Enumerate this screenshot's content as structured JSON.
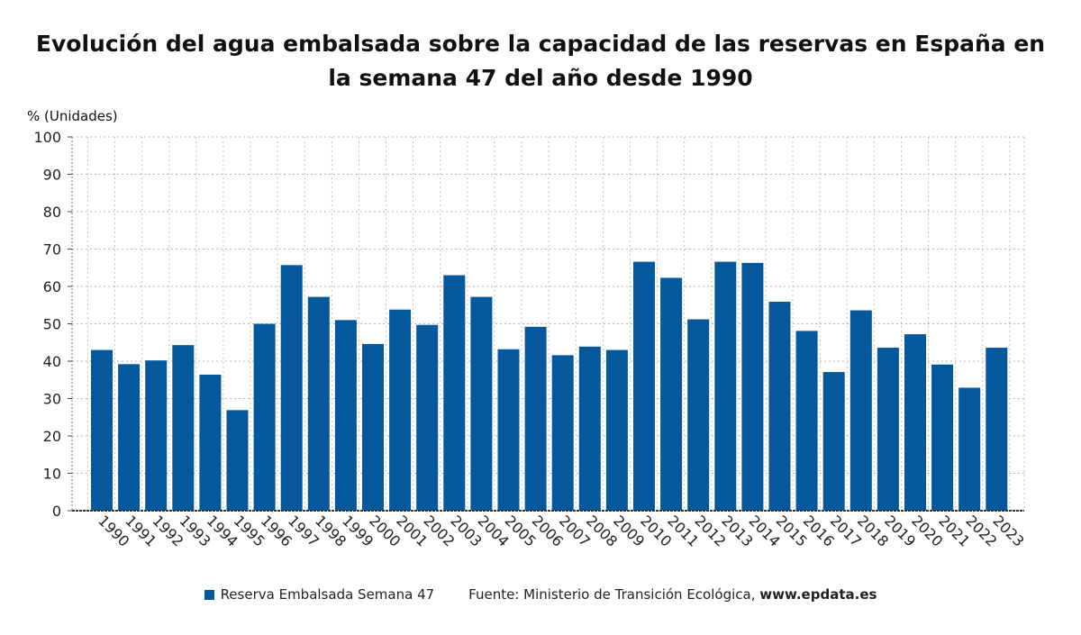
{
  "chart_data": {
    "type": "bar",
    "title": "Evolución del agua embalsada sobre la capacidad de las reservas en España en la semana 47 del año desde 1990",
    "ylabel": "% (Unidades)",
    "xlabel": "",
    "ylim": [
      0,
      100
    ],
    "yticks": [
      0,
      10,
      20,
      30,
      40,
      50,
      60,
      70,
      80,
      90,
      100
    ],
    "grid": true,
    "legend_position": "bottom",
    "categories": [
      "1990",
      "1991",
      "1992",
      "1993",
      "1994",
      "1995",
      "1996",
      "1997",
      "1998",
      "1999",
      "2000",
      "2001",
      "2002",
      "2003",
      "2004",
      "2005",
      "2006",
      "2007",
      "2008",
      "2009",
      "2010",
      "2011",
      "2012",
      "2013",
      "2014",
      "2015",
      "2016",
      "2017",
      "2018",
      "2019",
      "2020",
      "2021",
      "2022",
      "2023"
    ],
    "series": [
      {
        "name": "Reserva Embalsada Semana 47",
        "color": "#04589b",
        "values": [
          43.0,
          39.2,
          40.2,
          44.3,
          36.4,
          26.9,
          50.0,
          65.7,
          57.2,
          51.0,
          44.6,
          53.8,
          49.7,
          63.0,
          57.2,
          43.2,
          49.2,
          41.6,
          43.9,
          43.0,
          66.6,
          62.3,
          51.2,
          66.6,
          66.3,
          55.9,
          48.1,
          37.1,
          53.6,
          43.6,
          47.2,
          39.1,
          32.9,
          43.6
        ]
      }
    ]
  },
  "source": {
    "text": "Fuente: Ministerio de Transición Ecológica,",
    "url": "www.epdata.es"
  }
}
